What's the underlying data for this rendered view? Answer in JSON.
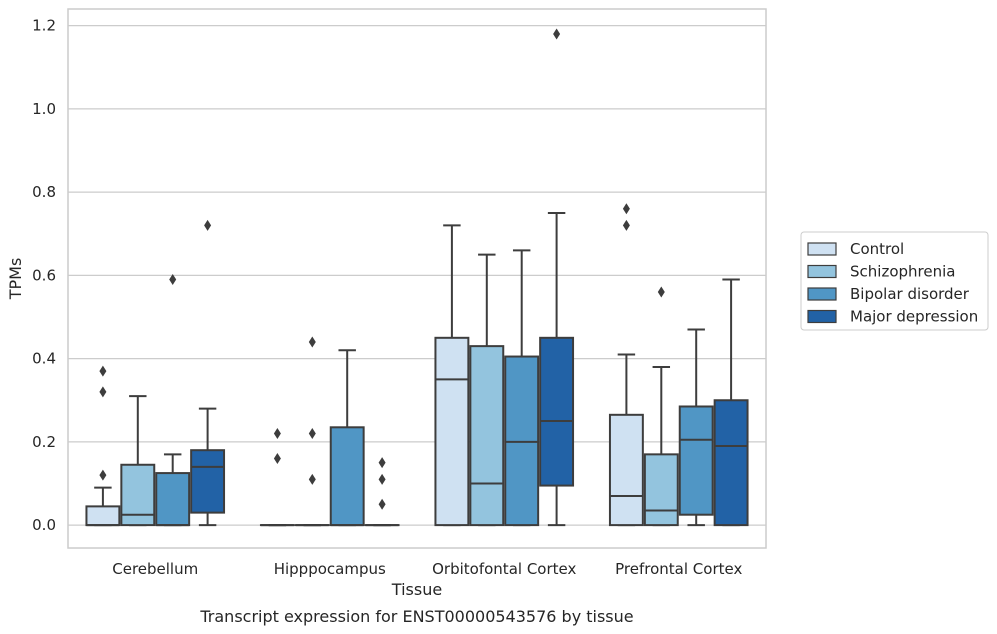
{
  "chart_data": {
    "type": "boxplot",
    "xlabel": "Tissue",
    "ylabel": "TPMs",
    "caption": "Transcript expression for ENST00000543576 by tissue",
    "ylim": [
      -0.055,
      1.24
    ],
    "yticks": [
      0.0,
      0.2,
      0.4,
      0.6,
      0.8,
      1.0,
      1.2
    ],
    "ytick_labels": [
      "0.0",
      "0.2",
      "0.4",
      "0.6",
      "0.8",
      "1.0",
      "1.2"
    ],
    "grid": "horizontal",
    "legend_position": "right",
    "categories": [
      "Cerebellum",
      "Hipppocampus",
      "Orbitofontal Cortex",
      "Prefrontal Cortex"
    ],
    "series": [
      {
        "name": "Control",
        "color": "#cfe1f2",
        "boxes": [
          {
            "whislo": 0.0,
            "q1": 0.0,
            "med": 0.0,
            "q3": 0.045,
            "whishi": 0.09,
            "fliers": [
              0.12,
              0.32,
              0.37
            ]
          },
          {
            "whislo": 0.0,
            "q1": 0.0,
            "med": 0.0,
            "q3": 0.0,
            "whishi": 0.0,
            "fliers": [
              0.16,
              0.22
            ]
          },
          {
            "whislo": 0.0,
            "q1": 0.0,
            "med": 0.35,
            "q3": 0.45,
            "whishi": 0.72,
            "fliers": []
          },
          {
            "whislo": 0.0,
            "q1": 0.0,
            "med": 0.07,
            "q3": 0.265,
            "whishi": 0.41,
            "fliers": [
              0.72,
              0.76
            ]
          }
        ]
      },
      {
        "name": "Schizophrenia",
        "color": "#93c4de",
        "boxes": [
          {
            "whislo": 0.0,
            "q1": 0.0,
            "med": 0.025,
            "q3": 0.145,
            "whishi": 0.31,
            "fliers": []
          },
          {
            "whislo": 0.0,
            "q1": 0.0,
            "med": 0.0,
            "q3": 0.0,
            "whishi": 0.0,
            "fliers": [
              0.11,
              0.22,
              0.44
            ]
          },
          {
            "whislo": 0.0,
            "q1": 0.0,
            "med": 0.1,
            "q3": 0.43,
            "whishi": 0.65,
            "fliers": []
          },
          {
            "whislo": 0.0,
            "q1": 0.0,
            "med": 0.035,
            "q3": 0.17,
            "whishi": 0.38,
            "fliers": [
              0.56
            ]
          }
        ]
      },
      {
        "name": "Bipolar disorder",
        "color": "#5096c5",
        "boxes": [
          {
            "whislo": 0.0,
            "q1": 0.0,
            "med": 0.0,
            "q3": 0.125,
            "whishi": 0.17,
            "fliers": [
              0.59
            ]
          },
          {
            "whislo": 0.0,
            "q1": 0.0,
            "med": 0.0,
            "q3": 0.235,
            "whishi": 0.42,
            "fliers": []
          },
          {
            "whislo": 0.0,
            "q1": 0.0,
            "med": 0.2,
            "q3": 0.405,
            "whishi": 0.66,
            "fliers": []
          },
          {
            "whislo": 0.0,
            "q1": 0.025,
            "med": 0.205,
            "q3": 0.285,
            "whishi": 0.47,
            "fliers": []
          }
        ]
      },
      {
        "name": "Major depression",
        "color": "#2262a6",
        "boxes": [
          {
            "whislo": 0.0,
            "q1": 0.03,
            "med": 0.14,
            "q3": 0.18,
            "whishi": 0.28,
            "fliers": [
              0.72
            ]
          },
          {
            "whislo": 0.0,
            "q1": 0.0,
            "med": 0.0,
            "q3": 0.0,
            "whishi": 0.0,
            "fliers": [
              0.05,
              0.11,
              0.15
            ]
          },
          {
            "whislo": 0.0,
            "q1": 0.095,
            "med": 0.25,
            "q3": 0.45,
            "whishi": 0.75,
            "fliers": [
              1.18
            ]
          },
          {
            "whislo": 0.0,
            "q1": 0.0,
            "med": 0.19,
            "q3": 0.3,
            "whishi": 0.59,
            "fliers": []
          }
        ]
      }
    ]
  }
}
